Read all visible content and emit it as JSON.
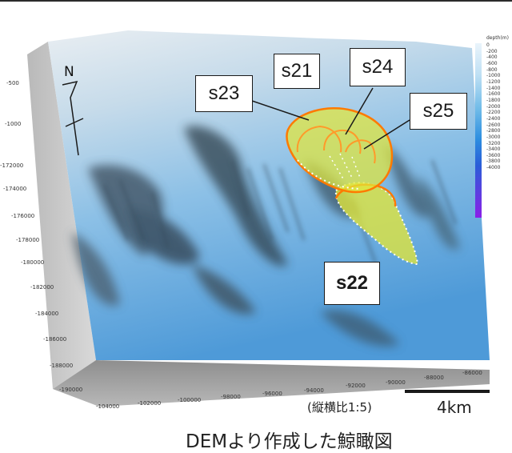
{
  "labels": {
    "s21": "s21",
    "s22": "s22",
    "s23": "s23",
    "s24": "s24",
    "s25": "s25"
  },
  "north": "N",
  "legend": {
    "title": "depth(m)",
    "values": [
      "0",
      "-200",
      "-400",
      "-600",
      "-800",
      "-1000",
      "-1200",
      "-1400",
      "-1600",
      "-1800",
      "-2000",
      "-2200",
      "-2400",
      "-2600",
      "-2800",
      "-3000",
      "-3200",
      "-3400",
      "-3600",
      "-3800",
      "-4000"
    ]
  },
  "left_axis_ticks": [
    "-500",
    "-1000",
    "-172000",
    "-174000",
    "-176000",
    "-178000",
    "-180000",
    "-182000",
    "-184000",
    "-186000",
    "-188000",
    "-190000"
  ],
  "bottom_axis_ticks": [
    "-104000",
    "-102000",
    "-100000",
    "-98000",
    "-96000",
    "-94000",
    "-92000",
    "-90000",
    "-88000",
    "-86000"
  ],
  "ratio_note": "(縦横比1:5)",
  "scale_label": "4km",
  "caption": "DEMより作成した鯨瞰図",
  "colors": {
    "landslide_fill": "#e2e63a",
    "landslide_outline": "#ff7a00",
    "sea_light": "#dfeaf2",
    "sea_deep": "#4f98d8"
  }
}
